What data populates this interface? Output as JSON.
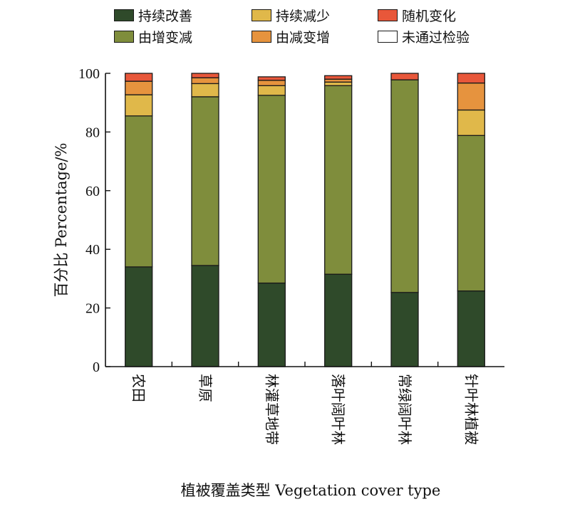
{
  "chart_data": {
    "type": "bar",
    "stacked": true,
    "title": "",
    "xlabel": "植被覆盖类型 Vegetation cover type",
    "ylabel": "百分比 Percentage/%",
    "ylim": [
      0,
      100
    ],
    "yticks": [
      "0",
      "20",
      "40",
      "60",
      "80",
      "100"
    ],
    "categories": [
      "农田",
      "草原",
      "林灌草地带",
      "落叶阔叶林",
      "常绿阔叶林",
      "针叶林植被"
    ],
    "series": [
      {
        "name": "持续改善",
        "color": "#2f4a2a",
        "values": [
          34.0,
          34.5,
          28.5,
          31.5,
          25.3,
          25.8
        ]
      },
      {
        "name": "由增变减",
        "color": "#7f8d3c",
        "values": [
          51.5,
          57.5,
          64.0,
          64.3,
          72.5,
          53.0
        ]
      },
      {
        "name": "持续减少",
        "color": "#e0b84a",
        "values": [
          7.2,
          4.5,
          3.3,
          1.2,
          0.0,
          8.7
        ]
      },
      {
        "name": "由减变增",
        "color": "#e6933e",
        "values": [
          4.6,
          2.0,
          1.8,
          1.0,
          0.0,
          9.2
        ]
      },
      {
        "name": "随机变化",
        "color": "#e8573a",
        "values": [
          2.7,
          1.5,
          1.2,
          1.2,
          2.2,
          3.3
        ]
      },
      {
        "name": "未通过检验",
        "color": "#ffffff",
        "values": [
          0.0,
          0.0,
          0.0,
          0.0,
          0.0,
          0.0
        ]
      }
    ],
    "legend_position": "top",
    "legend_columns_order": [
      [
        0,
        1
      ],
      [
        2,
        3
      ],
      [
        4,
        5
      ]
    ],
    "grid": false
  }
}
